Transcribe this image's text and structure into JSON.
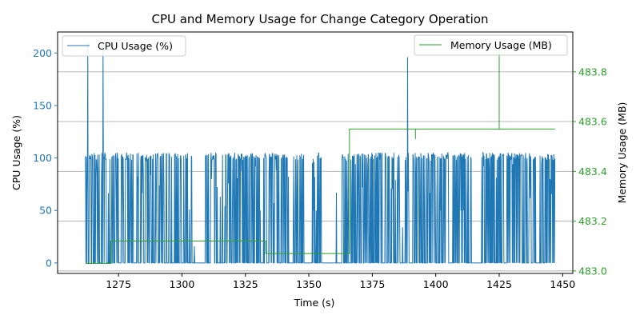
{
  "chart_data": {
    "type": "line",
    "title": "CPU and Memory Usage for Change Category Operation",
    "xlabel": "Time (s)",
    "ylabel_left": "CPU Usage (%)",
    "ylabel_right": "Memory Usage (MB)",
    "xlim": [
      1251,
      1454
    ],
    "ylim_left": [
      -10,
      220
    ],
    "ylim_right": [
      482.99,
      483.96
    ],
    "x_ticks": [
      1275,
      1300,
      1325,
      1350,
      1375,
      1400,
      1425,
      1450
    ],
    "y_ticks_left": [
      0,
      50,
      100,
      150,
      200
    ],
    "y_ticks_right": [
      483.0,
      483.2,
      483.4,
      483.6,
      483.8
    ],
    "grid": "horizontal lines at right-axis ticks",
    "legend_left": {
      "label": "CPU Usage (%)",
      "placement": "top-left"
    },
    "legend_right": {
      "label": "Memory Usage (MB)",
      "placement": "top-right"
    },
    "colors": {
      "cpu": "#1f77b4",
      "memory": "#2ca02c",
      "grid": "#b0b0b0",
      "axis": "#000000"
    },
    "series": [
      {
        "name": "CPU Usage (%)",
        "axis": "left",
        "t_start": 1262,
        "t_end": 1447,
        "spikes": [
          [
            1263,
            210
          ],
          [
            1269,
            210
          ],
          [
            1389,
            196
          ],
          [
            1361,
            67
          ],
          [
            1303,
            51
          ],
          [
            1316,
            50
          ],
          [
            1331,
            50
          ],
          [
            1352,
            50
          ],
          [
            1353,
            50
          ],
          [
            1374,
            25
          ],
          [
            1387,
            34
          ],
          [
            1301,
            34
          ],
          [
            1305,
            16
          ],
          [
            1344,
            50
          ],
          [
            1402,
            50
          ],
          [
            1408,
            50
          ],
          [
            1410,
            50
          ],
          [
            1411,
            50
          ],
          [
            1412,
            50
          ],
          [
            1400,
            50
          ]
        ],
        "bursts": [
          [
            1262,
            1275
          ],
          [
            1276,
            1281
          ],
          [
            1282,
            1296
          ],
          [
            1297,
            1304
          ],
          [
            1309,
            1314
          ],
          [
            1315,
            1324
          ],
          [
            1324,
            1331
          ],
          [
            1332,
            1342
          ],
          [
            1344,
            1348
          ],
          [
            1351,
            1355
          ],
          [
            1363,
            1379
          ],
          [
            1380,
            1386
          ],
          [
            1388,
            1390
          ],
          [
            1391,
            1405
          ],
          [
            1406,
            1414
          ],
          [
            1418,
            1427
          ],
          [
            1428,
            1440
          ],
          [
            1441,
            1447
          ]
        ],
        "typical_peak": 104
      },
      {
        "name": "Memory Usage (MB)",
        "axis": "right",
        "steps": [
          [
            1262,
            483.03
          ],
          [
            1272,
            483.03
          ],
          [
            1272,
            483.12
          ],
          [
            1333,
            483.12
          ],
          [
            1333,
            483.07
          ],
          [
            1366,
            483.07
          ],
          [
            1366,
            483.57
          ],
          [
            1392,
            483.57
          ],
          [
            1392,
            483.53
          ],
          [
            1392,
            483.57
          ],
          [
            1425,
            483.57
          ],
          [
            1425,
            483.9
          ],
          [
            1425,
            483.57
          ],
          [
            1447,
            483.57
          ]
        ]
      }
    ]
  }
}
